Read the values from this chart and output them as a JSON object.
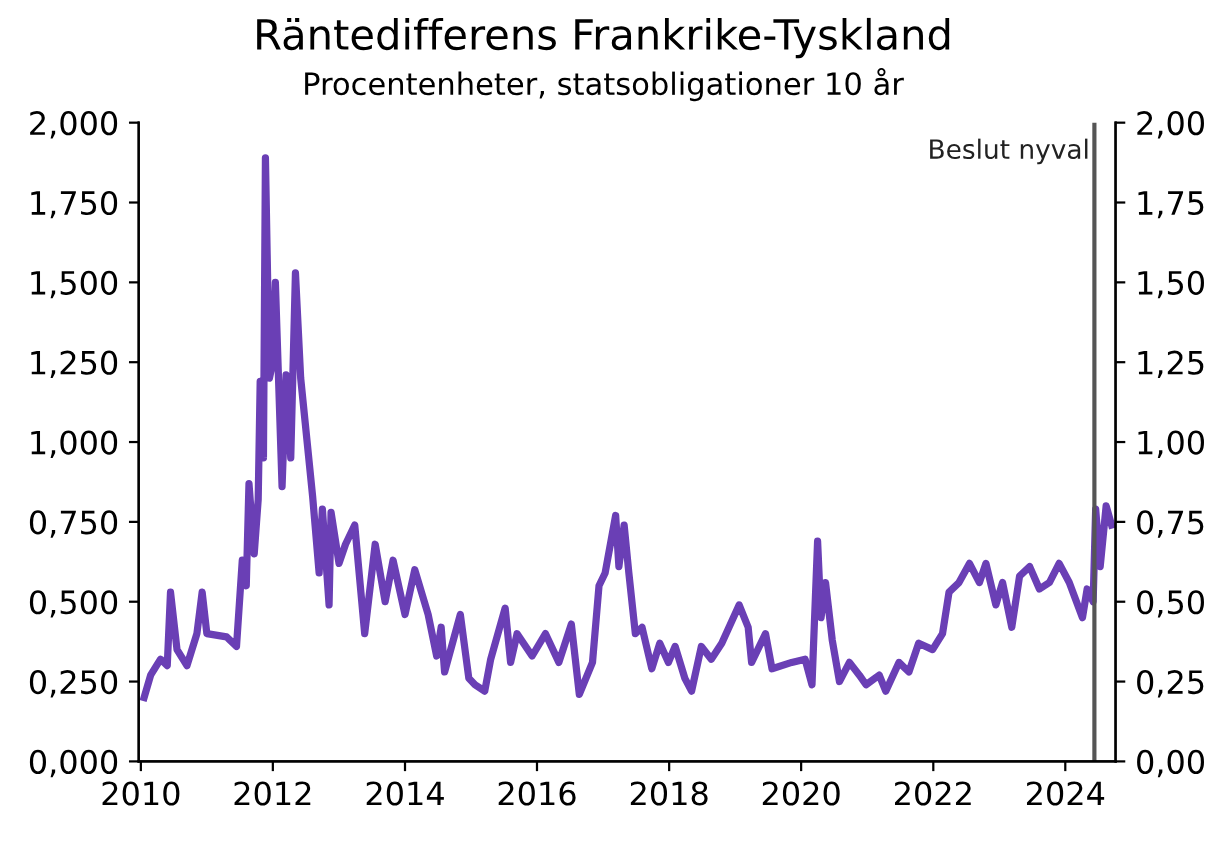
{
  "chart_data": {
    "type": "line",
    "title": "Räntedifferens Frankrike-Tyskland",
    "subtitle": "Procentenheter, statsobligationer 10 år",
    "x": [
      "2010-01-19",
      "2010-02-24",
      "2010-04-20",
      "2010-05-27",
      "2010-06-14",
      "2010-07-20",
      "2010-09-13",
      "2010-11-07",
      "2010-12-06",
      "2011-01-01",
      "2011-04-20",
      "2011-06-14",
      "2011-07-16",
      "2011-08-07",
      "2011-08-22",
      "2011-09-20",
      "2011-10-12",
      "2011-10-23",
      "2011-11-10",
      "2011-11-21",
      "2011-12-13",
      "2012-01-01",
      "2012-01-15",
      "2012-02-21",
      "2012-03-14",
      "2012-04-09",
      "2012-05-05",
      "2012-06-03",
      "2012-06-28",
      "2012-08-08",
      "2012-09-13",
      "2012-10-01",
      "2012-11-07",
      "2012-11-18",
      "2013-01-01",
      "2013-02-06",
      "2013-03-29",
      "2013-05-23",
      "2013-07-20",
      "2013-09-13",
      "2013-10-27",
      "2014-01-01",
      "2014-02-24",
      "2014-05-09",
      "2014-06-25",
      "2014-07-20",
      "2014-08-08",
      "2014-11-03",
      "2014-12-20",
      "2015-01-23",
      "2015-03-18",
      "2015-04-20",
      "2015-07-09",
      "2015-08-08",
      "2015-09-13",
      "2015-12-05",
      "2016-02-17",
      "2016-05-01",
      "2016-07-09",
      "2016-08-22",
      "2016-11-03",
      "2016-12-09",
      "2017-01-12",
      "2017-03-11",
      "2017-03-29",
      "2017-04-27",
      "2017-05-23",
      "2017-06-28",
      "2017-08-04",
      "2017-09-27",
      "2017-11-10",
      "2017-12-28",
      "2018-02-03",
      "2018-03-29",
      "2018-05-05",
      "2018-06-28",
      "2018-08-22",
      "2018-10-19",
      "2019-01-23",
      "2019-03-14",
      "2019-04-02",
      "2019-06-18",
      "2019-07-24",
      "2019-11-10",
      "2020-01-23",
      "2020-03-01",
      "2020-04-01",
      "2020-04-20",
      "2020-05-15",
      "2020-06-21",
      "2020-07-31",
      "2020-09-24",
      "2020-11-18",
      "2020-12-25",
      "2021-03-08",
      "2021-04-13",
      "2021-06-25",
      "2021-08-19",
      "2021-10-12",
      "2021-12-28",
      "2022-02-21",
      "2022-03-29",
      "2022-05-23",
      "2022-07-20",
      "2022-09-13",
      "2022-10-19",
      "2022-12-13",
      "2023-01-19",
      "2023-03-11",
      "2023-04-23",
      "2023-06-18",
      "2023-08-11",
      "2023-10-05",
      "2023-11-28",
      "2024-01-23",
      "2024-04-05",
      "2024-05-01",
      "2024-06-03",
      "2024-06-17",
      "2024-07-12",
      "2024-08-14",
      "2024-09-13"
    ],
    "series": [
      {
        "color": "#6a3fb5",
        "values": [
          0.2,
          0.27,
          0.32,
          0.3,
          0.53,
          0.35,
          0.3,
          0.4,
          0.53,
          0.4,
          0.39,
          0.36,
          0.63,
          0.55,
          0.87,
          0.65,
          0.82,
          1.19,
          0.95,
          1.89,
          1.2,
          1.25,
          1.5,
          0.86,
          1.21,
          0.95,
          1.53,
          1.2,
          1.06,
          0.83,
          0.59,
          0.79,
          0.49,
          0.78,
          0.62,
          0.68,
          0.74,
          0.4,
          0.68,
          0.5,
          0.63,
          0.46,
          0.6,
          0.46,
          0.33,
          0.42,
          0.28,
          0.46,
          0.26,
          0.24,
          0.22,
          0.32,
          0.48,
          0.31,
          0.4,
          0.33,
          0.4,
          0.31,
          0.43,
          0.21,
          0.31,
          0.55,
          0.59,
          0.77,
          0.61,
          0.74,
          0.59,
          0.4,
          0.42,
          0.29,
          0.37,
          0.31,
          0.36,
          0.26,
          0.22,
          0.36,
          0.32,
          0.37,
          0.49,
          0.42,
          0.31,
          0.4,
          0.29,
          0.31,
          0.32,
          0.24,
          0.69,
          0.45,
          0.56,
          0.38,
          0.25,
          0.31,
          0.27,
          0.24,
          0.27,
          0.22,
          0.31,
          0.28,
          0.37,
          0.35,
          0.4,
          0.53,
          0.56,
          0.62,
          0.56,
          0.62,
          0.49,
          0.56,
          0.42,
          0.58,
          0.61,
          0.54,
          0.56,
          0.62,
          0.56,
          0.45,
          0.54,
          0.5,
          0.79,
          0.61,
          0.8,
          0.74
        ]
      }
    ],
    "xlim": [
      "2009-12-20",
      "2024-10-05"
    ],
    "xticks": [
      "2010",
      "2012",
      "2014",
      "2016",
      "2018",
      "2020",
      "2022",
      "2024"
    ],
    "ylim": [
      0,
      2.0
    ],
    "yticks": [
      {
        "value": 0,
        "label": "0,000"
      },
      {
        "value": 0.25,
        "label": "0,250"
      },
      {
        "value": 0.5,
        "label": "0,500"
      },
      {
        "value": 0.75,
        "label": "0,750"
      },
      {
        "value": 1.0,
        "label": "1,000"
      },
      {
        "value": 1.25,
        "label": "1,250"
      },
      {
        "value": 1.5,
        "label": "1,500"
      },
      {
        "value": 1.75,
        "label": "1,750"
      },
      {
        "value": 2.0,
        "label": "2,000"
      }
    ],
    "y2lim": [
      0,
      2.0
    ],
    "y2ticks": [
      {
        "value": 0,
        "label": "0,00"
      },
      {
        "value": 0.25,
        "label": "0,25"
      },
      {
        "value": 0.5,
        "label": "0,50"
      },
      {
        "value": 0.75,
        "label": "0,75"
      },
      {
        "value": 1.0,
        "label": "1,00"
      },
      {
        "value": 1.25,
        "label": "1,25"
      },
      {
        "value": 1.5,
        "label": "1,50"
      },
      {
        "value": 1.75,
        "label": "1,75"
      },
      {
        "value": 2.0,
        "label": "2,00"
      }
    ],
    "ref_lines": [
      {
        "axis": "x",
        "value": "2024-06-10",
        "label": "Beslut nyval",
        "color": "#555555"
      }
    ],
    "grid": false,
    "legend": false
  }
}
